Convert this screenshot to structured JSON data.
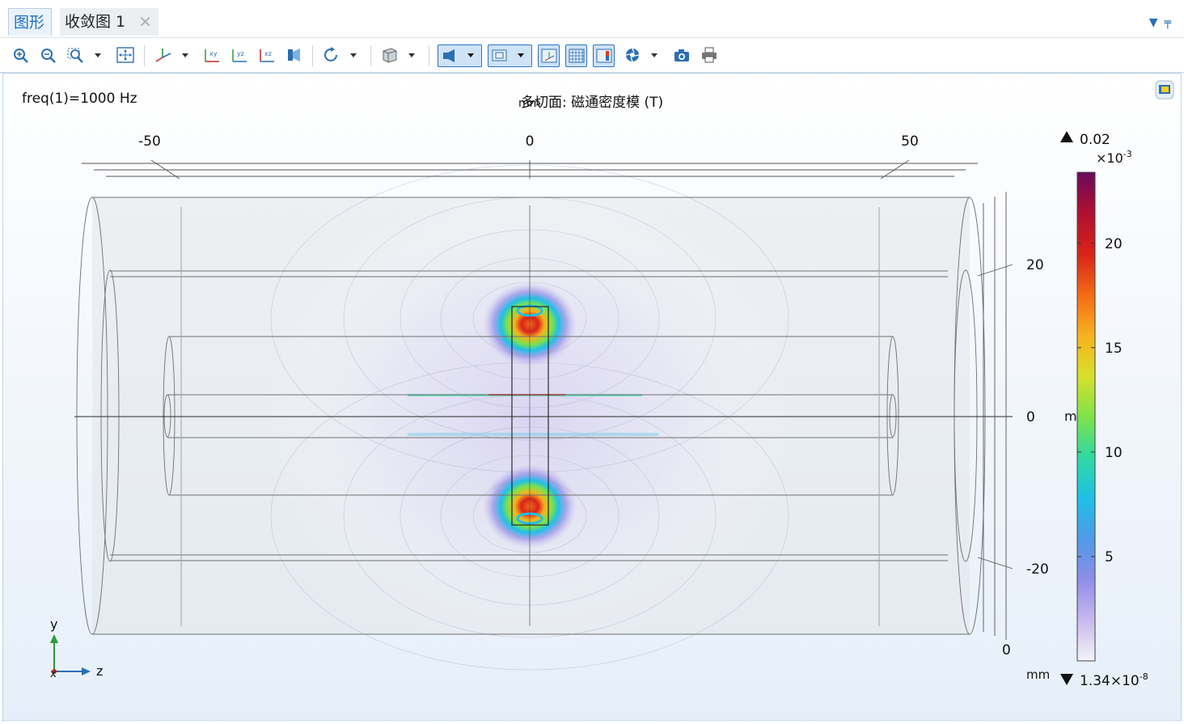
{
  "tabs": [
    {
      "label": "图形",
      "active": true
    },
    {
      "label": "收敛图 1",
      "active": false
    }
  ],
  "tab_close_glyph": "✕",
  "tab_tools": [
    "chevron-down-icon",
    "pin-icon"
  ],
  "toolbar": {
    "buttons": [
      "zoom-in-icon",
      "zoom-out-icon",
      "zoom-box-icon",
      "zoom-extents-icon",
      "axes-icon",
      "view-xy-icon",
      "view-yz-icon",
      "view-xz-icon",
      "scene-light-icon",
      "rotate-icon",
      "transparency-icon",
      "light-icon",
      "rendering-icon",
      "axis-orientation-icon",
      "grid-icon",
      "legend-icon",
      "camera-shutter-icon",
      "screenshot-icon",
      "print-icon"
    ],
    "xy_label": "xy",
    "yz_label": "yz",
    "xz_label": "xz"
  },
  "plot": {
    "freq_label": "freq(1)=1000 Hz",
    "title": "多切面: 磁通密度模 (T)",
    "title_unit": "mm",
    "top_axis_ticks": [
      "-50",
      "0",
      "50"
    ],
    "right_axis_ticks": [
      "20",
      "0",
      "-20"
    ],
    "right_axis_unit": "m",
    "depth_axis_tick": "0",
    "depth_axis_unit": "mm",
    "triad": {
      "y": "y",
      "x": "x",
      "z": "z"
    },
    "colorbar": {
      "max_label": "0.02",
      "multiplier": "×10",
      "multiplier_exp": "-3",
      "ticks": [
        "20",
        "15",
        "10",
        "5"
      ],
      "min_label": "1.34×10",
      "min_exp": "-8",
      "colors": [
        "#f4f4f8",
        "#c8b8ee",
        "#8f8de6",
        "#4f9ae8",
        "#1fc0e6",
        "#2fd9a2",
        "#7ee24a",
        "#d8e02a",
        "#f7b11e",
        "#f36a16",
        "#d8231a",
        "#b01030",
        "#6a0a5e"
      ]
    }
  }
}
